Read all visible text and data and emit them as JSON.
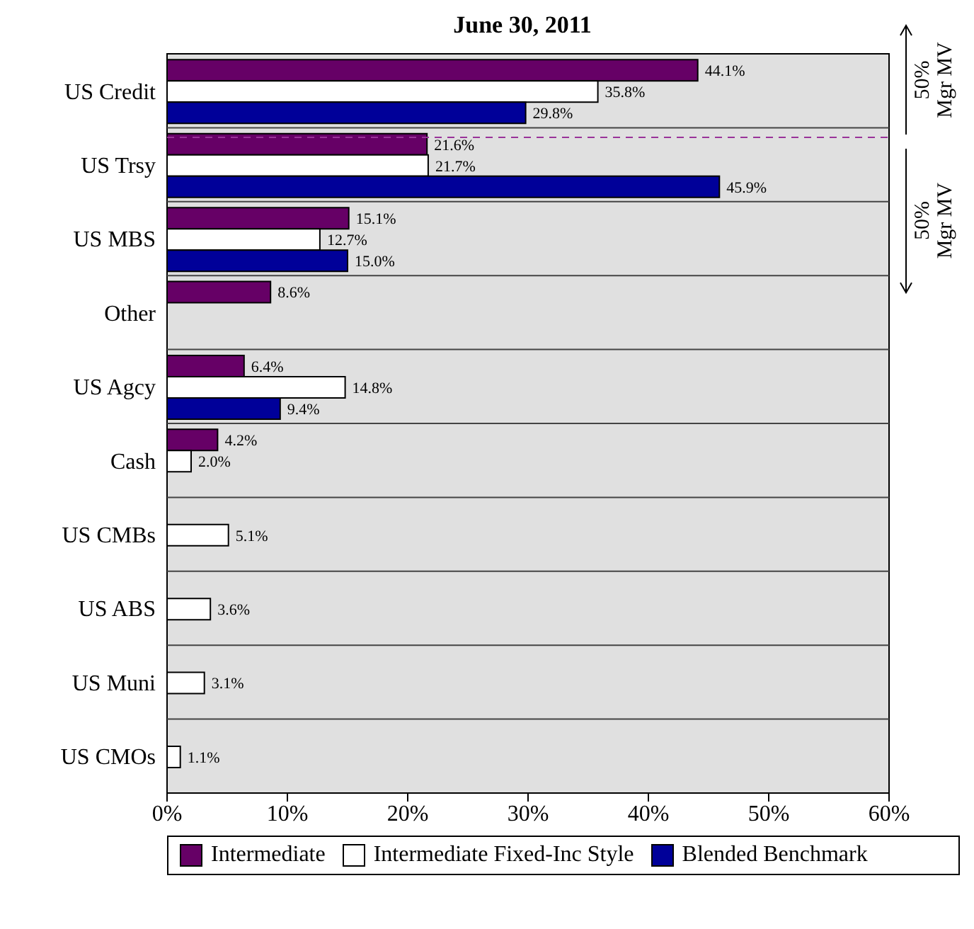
{
  "chart_data": {
    "type": "bar",
    "orientation": "horizontal",
    "title": "June 30, 2011",
    "categories": [
      "US Credit",
      "US Trsy",
      "US  MBS",
      "Other",
      "US Agcy",
      "Cash",
      "US CMBs",
      "US  ABS",
      "US Muni",
      "US CMOs"
    ],
    "series": [
      {
        "name": "Intermediate",
        "color": "#660066",
        "values": [
          44.1,
          21.6,
          15.1,
          8.6,
          6.4,
          4.2,
          null,
          null,
          null,
          null
        ],
        "value_labels": [
          "44.1%",
          "21.6%",
          "15.1%",
          "8.6%",
          "6.4%",
          "4.2%",
          null,
          null,
          null,
          null
        ]
      },
      {
        "name": "Intermediate Fixed-Inc Style",
        "color": "#ffffff",
        "values": [
          35.8,
          21.7,
          12.7,
          null,
          14.8,
          2.0,
          5.1,
          3.6,
          3.1,
          1.1
        ],
        "value_labels": [
          "35.8%",
          "21.7%",
          "12.7%",
          null,
          "14.8%",
          "2.0%",
          "5.1%",
          "3.6%",
          "3.1%",
          "1.1%"
        ]
      },
      {
        "name": "Blended Benchmark",
        "color": "#000099",
        "values": [
          29.8,
          45.9,
          15.0,
          null,
          9.4,
          null,
          null,
          null,
          null,
          null
        ],
        "value_labels": [
          "29.8%",
          "45.9%",
          "15.0%",
          null,
          "9.4%",
          null,
          null,
          null,
          null,
          null
        ]
      }
    ],
    "xlim": [
      0,
      60
    ],
    "xticks": [
      {
        "value": 0,
        "label": "0%"
      },
      {
        "value": 10,
        "label": "10%"
      },
      {
        "value": 20,
        "label": "20%"
      },
      {
        "value": 30,
        "label": "30%"
      },
      {
        "value": 40,
        "label": "40%"
      },
      {
        "value": 50,
        "label": "50%"
      },
      {
        "value": 60,
        "label": "60%"
      }
    ],
    "ref_lines": [
      {
        "axis": "y",
        "value": "US Trsy",
        "label": null,
        "color": "#993399",
        "line_style": "dashed"
      }
    ],
    "annotations": [
      "50% Mgr MV",
      "50% Mgr MV"
    ],
    "legend": "bottom"
  }
}
